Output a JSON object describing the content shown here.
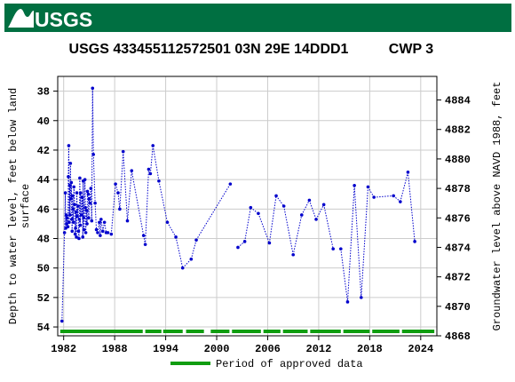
{
  "header": {
    "logo_text": "USGS",
    "brand_color": "#006f41"
  },
  "chart_data": {
    "type": "scatter",
    "title": "USGS 433455112572501 03N 29E 14DDD1",
    "subtitle": "CWP 3",
    "ylabel_line1": "Depth to water level, feet below land",
    "ylabel_line2": "surface",
    "y2label": "Groundwater level above NAVD 1988, feet",
    "xlim": [
      1981.3,
      2025.9
    ],
    "ylim": [
      54.6,
      37.0
    ],
    "y2lim": [
      4868.0,
      4885.6
    ],
    "x_ticks": [
      1982,
      1988,
      1994,
      2000,
      2006,
      2012,
      2018,
      2024
    ],
    "y_ticks": [
      38,
      40,
      42,
      44,
      46,
      48,
      50,
      52,
      54
    ],
    "y2_ticks": [
      4868,
      4870,
      4872,
      4874,
      4876,
      4878,
      4880,
      4882,
      4884
    ],
    "grid": true,
    "series_color": "#0000cc",
    "approved_color": "#109d10",
    "legend": {
      "label": "Period of approved data",
      "position": "bottom"
    },
    "points": [
      [
        1981.8,
        53.6
      ],
      [
        1982.1,
        47.6
      ],
      [
        1982.2,
        44.9
      ],
      [
        1982.25,
        47.3
      ],
      [
        1982.3,
        46.4
      ],
      [
        1982.35,
        47.0
      ],
      [
        1982.4,
        46.6
      ],
      [
        1982.5,
        47.2
      ],
      [
        1982.55,
        43.8
      ],
      [
        1982.6,
        41.7
      ],
      [
        1982.65,
        46.9
      ],
      [
        1982.7,
        44.4
      ],
      [
        1982.75,
        46.4
      ],
      [
        1982.8,
        42.9
      ],
      [
        1982.85,
        45.3
      ],
      [
        1982.9,
        44.2
      ],
      [
        1982.95,
        46.7
      ],
      [
        1983.0,
        47.5
      ],
      [
        1983.05,
        45.1
      ],
      [
        1983.1,
        46.0
      ],
      [
        1983.15,
        46.9
      ],
      [
        1983.2,
        44.5
      ],
      [
        1983.3,
        45.7
      ],
      [
        1983.35,
        47.7
      ],
      [
        1983.4,
        47.3
      ],
      [
        1983.45,
        46.2
      ],
      [
        1983.5,
        47.9
      ],
      [
        1983.55,
        44.9
      ],
      [
        1983.6,
        46.5
      ],
      [
        1983.7,
        45.8
      ],
      [
        1983.75,
        47.5
      ],
      [
        1983.8,
        48.0
      ],
      [
        1983.85,
        46.7
      ],
      [
        1983.9,
        43.9
      ],
      [
        1983.95,
        47.1
      ],
      [
        1984.0,
        44.9
      ],
      [
        1984.1,
        46.4
      ],
      [
        1984.2,
        45.2
      ],
      [
        1984.25,
        47.9
      ],
      [
        1984.3,
        44.1
      ],
      [
        1984.35,
        46.6
      ],
      [
        1984.4,
        47.4
      ],
      [
        1984.5,
        44.0
      ],
      [
        1984.55,
        45.9
      ],
      [
        1984.6,
        47.6
      ],
      [
        1984.7,
        46.1
      ],
      [
        1984.75,
        47.0
      ],
      [
        1984.8,
        44.8
      ],
      [
        1984.9,
        45.0
      ],
      [
        1984.95,
        46.6
      ],
      [
        1985.0,
        45.3
      ],
      [
        1985.1,
        45.6
      ],
      [
        1985.2,
        44.6
      ],
      [
        1985.3,
        46.8
      ],
      [
        1985.4,
        37.8
      ],
      [
        1985.5,
        42.3
      ],
      [
        1985.7,
        45.6
      ],
      [
        1985.85,
        47.4
      ],
      [
        1986.0,
        47.6
      ],
      [
        1986.2,
        46.9
      ],
      [
        1986.3,
        47.8
      ],
      [
        1986.4,
        46.7
      ],
      [
        1986.6,
        47.5
      ],
      [
        1986.8,
        46.9
      ],
      [
        1987.0,
        47.6
      ],
      [
        1987.2,
        47.6
      ],
      [
        1987.6,
        47.7
      ],
      [
        1988.1,
        44.3
      ],
      [
        1988.4,
        44.9
      ],
      [
        1988.6,
        46.0
      ],
      [
        1989.0,
        42.1
      ],
      [
        1989.5,
        46.8
      ],
      [
        1990.0,
        43.4
      ],
      [
        1991.4,
        47.8
      ],
      [
        1991.6,
        48.4
      ],
      [
        1992.0,
        43.3
      ],
      [
        1992.2,
        43.6
      ],
      [
        1992.5,
        41.7
      ],
      [
        1993.2,
        44.1
      ],
      [
        1994.2,
        46.9
      ],
      [
        1995.2,
        47.9
      ],
      [
        1996.0,
        50.0
      ],
      [
        1997.0,
        49.4
      ],
      [
        1997.6,
        48.1
      ],
      [
        2001.6,
        44.3
      ],
      [
        2002.5,
        48.6
      ],
      [
        2003.3,
        48.2
      ],
      [
        2004.0,
        45.9
      ],
      [
        2004.9,
        46.3
      ],
      [
        2006.2,
        48.3
      ],
      [
        2007.0,
        45.1
      ],
      [
        2007.9,
        45.8
      ],
      [
        2009.0,
        49.1
      ],
      [
        2010.0,
        46.4
      ],
      [
        2010.9,
        45.4
      ],
      [
        2011.7,
        46.7
      ],
      [
        2012.6,
        45.7
      ],
      [
        2013.7,
        48.7
      ],
      [
        2014.6,
        48.7
      ],
      [
        2015.4,
        52.3
      ],
      [
        2016.2,
        44.4
      ],
      [
        2017.0,
        52.0
      ],
      [
        2017.8,
        44.5
      ],
      [
        2018.5,
        45.2
      ],
      [
        2020.8,
        45.1
      ],
      [
        2021.6,
        45.5
      ],
      [
        2022.5,
        43.5
      ],
      [
        2023.3,
        48.2
      ]
    ],
    "breaks_after": [
      84,
      97
    ],
    "approved_periods": [
      [
        1981.6,
        1991.3
      ],
      [
        1991.6,
        1993.5
      ],
      [
        1993.7,
        1996.0
      ],
      [
        1996.4,
        1998.5
      ],
      [
        1999.3,
        2001.5
      ],
      [
        2001.8,
        2005.2
      ],
      [
        2005.5,
        2007.5
      ],
      [
        2007.8,
        2010.7
      ],
      [
        2011.0,
        2014.6
      ],
      [
        2014.9,
        2018.0
      ],
      [
        2018.3,
        2021.5
      ],
      [
        2021.8,
        2025.6
      ]
    ]
  }
}
